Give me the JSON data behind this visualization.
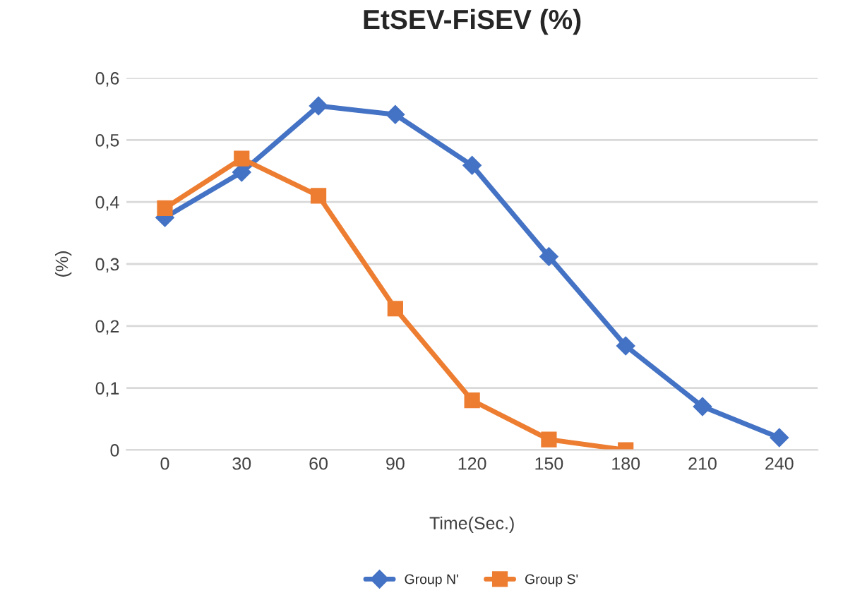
{
  "chart_data": {
    "type": "line",
    "title": "EtSEV-FiSEV (%)",
    "xlabel": "Time(Sec.)",
    "ylabel": "(%)",
    "categories": [
      "0",
      "30",
      "60",
      "90",
      "120",
      "150",
      "180",
      "210",
      "240"
    ],
    "series": [
      {
        "name": "Group N'",
        "color": "#4472c4",
        "marker": "diamond",
        "values": [
          0.375,
          0.448,
          0.555,
          0.541,
          0.459,
          0.312,
          0.168,
          0.07,
          0.02
        ]
      },
      {
        "name": "Group S'",
        "color": "#ed7d31",
        "marker": "square",
        "values": [
          0.39,
          0.47,
          0.41,
          0.228,
          0.08,
          0.017,
          0.0,
          null,
          null
        ]
      }
    ],
    "ylim": [
      0,
      0.6
    ],
    "yticks": [
      {
        "value": 0,
        "label": "0"
      },
      {
        "value": 0.1,
        "label": "0,1"
      },
      {
        "value": 0.2,
        "label": "0,2"
      },
      {
        "value": 0.3,
        "label": "0,3"
      },
      {
        "value": 0.4,
        "label": "0,4"
      },
      {
        "value": 0.5,
        "label": "0,5"
      },
      {
        "value": 0.6,
        "label": "0,6"
      }
    ],
    "grid": "y",
    "legend": "bottom",
    "line_style": "solid"
  }
}
